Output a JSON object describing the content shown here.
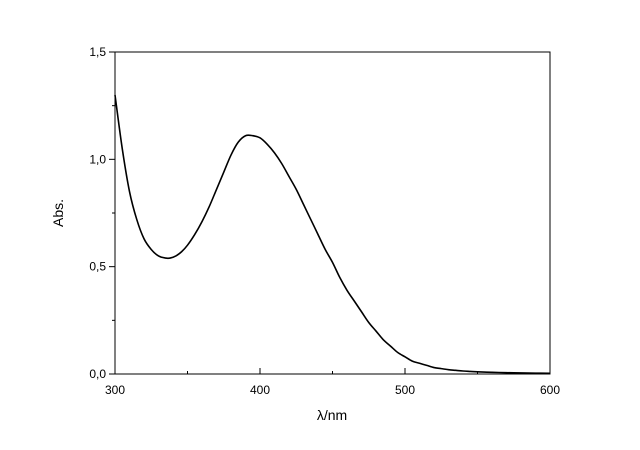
{
  "chart_data": {
    "type": "line",
    "title": "",
    "xlabel": "λ/nm",
    "ylabel": "Abs.",
    "xlim": [
      300,
      600
    ],
    "ylim": [
      0.0,
      1.5
    ],
    "x_ticks": [
      300,
      400,
      500,
      600
    ],
    "x_tick_labels": [
      "300",
      "400",
      "500",
      "600"
    ],
    "y_ticks": [
      0.0,
      0.5,
      1.0,
      1.5
    ],
    "y_tick_labels": [
      "0,0",
      "0,5",
      "1,0",
      "1,5"
    ],
    "grid": false,
    "legend": "none",
    "line_color": "#000000",
    "series": [
      {
        "x": [
          300,
          305,
          310,
          315,
          320,
          325,
          330,
          335,
          338,
          342,
          346,
          350,
          355,
          360,
          365,
          370,
          375,
          380,
          385,
          390,
          395,
          400,
          405,
          410,
          415,
          420,
          425,
          430,
          435,
          440,
          445,
          450,
          455,
          460,
          465,
          470,
          475,
          480,
          485,
          490,
          495,
          500,
          505,
          510,
          515,
          520,
          525,
          530,
          535,
          540,
          545,
          550,
          560,
          570,
          580,
          590,
          600
        ],
        "y": [
          1.3,
          1.05,
          0.85,
          0.72,
          0.63,
          0.58,
          0.55,
          0.54,
          0.54,
          0.55,
          0.57,
          0.6,
          0.65,
          0.71,
          0.78,
          0.86,
          0.94,
          1.02,
          1.08,
          1.11,
          1.11,
          1.1,
          1.07,
          1.03,
          0.98,
          0.92,
          0.86,
          0.79,
          0.72,
          0.65,
          0.58,
          0.52,
          0.45,
          0.39,
          0.34,
          0.29,
          0.24,
          0.2,
          0.16,
          0.13,
          0.1,
          0.08,
          0.06,
          0.05,
          0.04,
          0.03,
          0.025,
          0.02,
          0.017,
          0.014,
          0.012,
          0.01,
          0.008,
          0.006,
          0.005,
          0.004,
          0.003
        ]
      }
    ]
  }
}
